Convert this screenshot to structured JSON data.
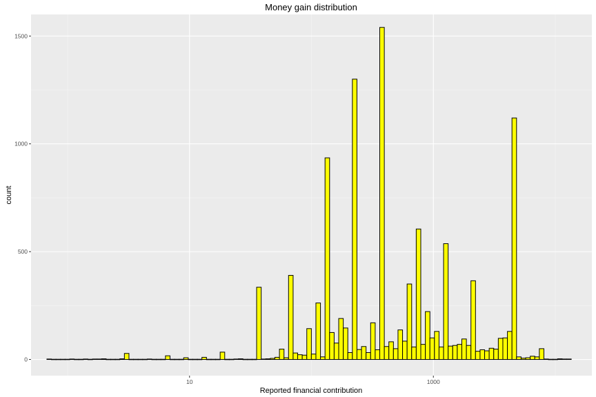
{
  "chart_data": {
    "type": "bar",
    "title": "Money gain distribution",
    "xlabel": "Reported financial contribution",
    "ylabel": "count",
    "x_scale": "log10",
    "xlim_log10": [
      -0.3,
      4.3
    ],
    "ylim": [
      -75,
      1600
    ],
    "x_ticks": [
      {
        "value": 10,
        "label": "10"
      },
      {
        "value": 1000,
        "label": "1000"
      }
    ],
    "y_ticks": [
      {
        "value": 0,
        "label": "0"
      },
      {
        "value": 500,
        "label": "500"
      },
      {
        "value": 1000,
        "label": "1000"
      },
      {
        "value": 1500,
        "label": "1500"
      }
    ],
    "bin_start_log10": -0.17,
    "bin_width_log10": 0.0374,
    "series": [
      {
        "name": "count",
        "fill": "#ffff00",
        "stroke": "#000000",
        "values": [
          2,
          1,
          1,
          1,
          1,
          2,
          1,
          1,
          2,
          1,
          2,
          2,
          3,
          1,
          1,
          1,
          3,
          28,
          1,
          1,
          1,
          1,
          2,
          1,
          1,
          1,
          17,
          1,
          1,
          1,
          8,
          1,
          1,
          1,
          10,
          1,
          1,
          1,
          34,
          1,
          1,
          2,
          3,
          1,
          1,
          1,
          335,
          2,
          3,
          5,
          10,
          48,
          8,
          390,
          30,
          22,
          20,
          143,
          25,
          262,
          12,
          935,
          125,
          76,
          190,
          146,
          32,
          1300,
          46,
          60,
          32,
          170,
          45,
          1540,
          60,
          82,
          50,
          137,
          85,
          350,
          58,
          605,
          70,
          222,
          100,
          130,
          58,
          537,
          62,
          65,
          70,
          95,
          65,
          365,
          38,
          45,
          40,
          52,
          48,
          98,
          100,
          130,
          1120,
          12,
          6,
          8,
          15,
          12,
          50,
          2,
          1,
          1,
          3,
          2,
          2
        ]
      }
    ]
  }
}
